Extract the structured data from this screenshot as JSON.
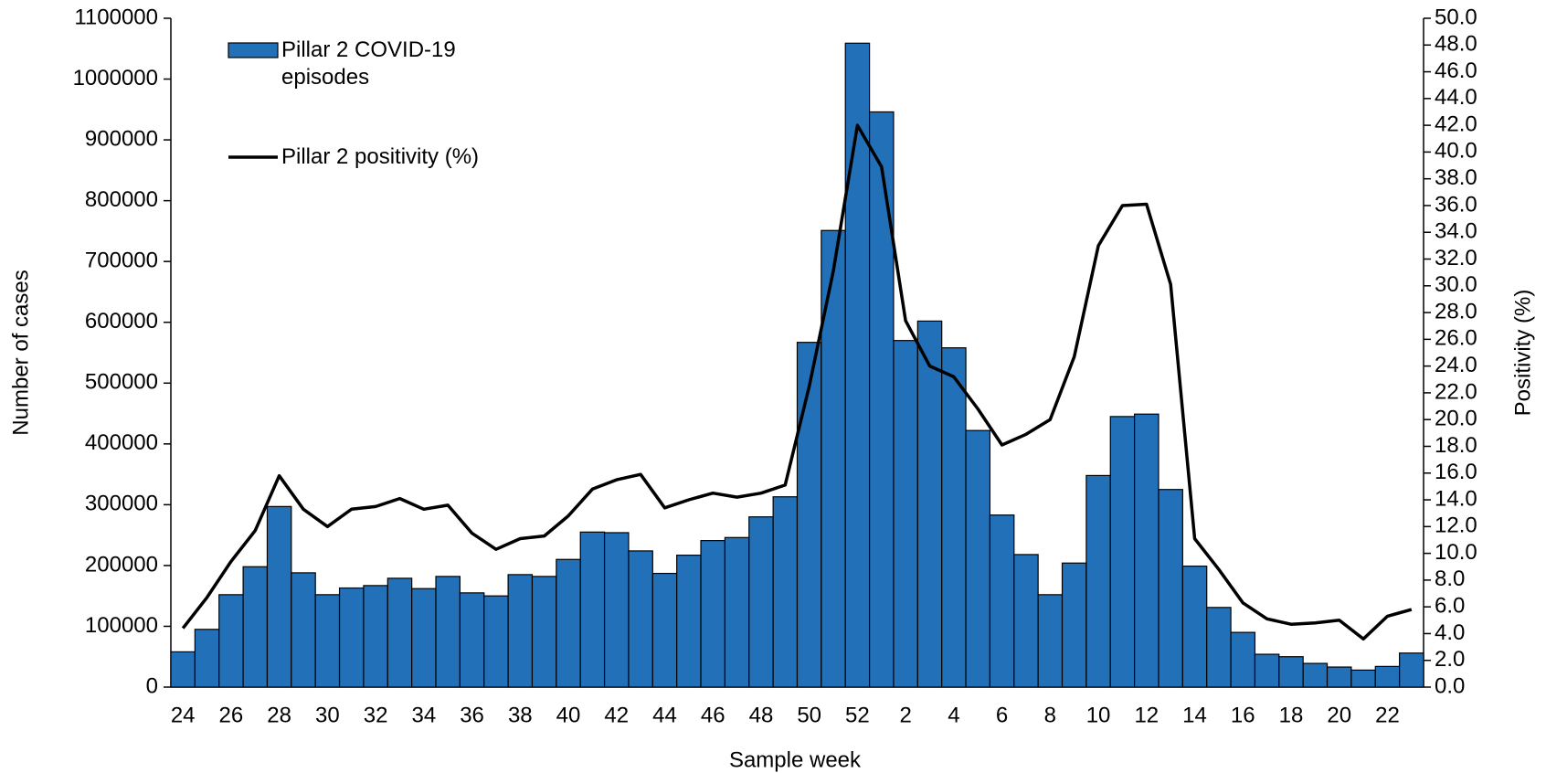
{
  "chart_data": {
    "type": "bar",
    "x_label": "Sample week",
    "y_label": "Number of cases",
    "y2_label": "Positivity (%)",
    "categories": [
      "24",
      null,
      "26",
      null,
      "28",
      null,
      "30",
      null,
      "32",
      null,
      "34",
      null,
      "36",
      null,
      "38",
      null,
      "40",
      null,
      "42",
      null,
      "44",
      null,
      "46",
      null,
      "48",
      null,
      "50",
      null,
      "52",
      null,
      "2",
      null,
      "4",
      null,
      "6",
      null,
      "8",
      null,
      "10",
      null,
      "12",
      null,
      "14",
      null,
      "16",
      null,
      "18",
      null,
      "20",
      null,
      "22",
      null
    ],
    "series": [
      {
        "name": "Pillar 2 COVID-19 episodes",
        "type": "bar",
        "color": "#2271b8",
        "values": [
          58000,
          95000,
          152000,
          198000,
          297000,
          188000,
          152000,
          163000,
          167000,
          179000,
          162000,
          182000,
          155000,
          150000,
          185000,
          182000,
          210000,
          255000,
          254000,
          224000,
          187000,
          217000,
          241000,
          246000,
          280000,
          313000,
          567000,
          751000,
          1059000,
          946000,
          570000,
          602000,
          558000,
          422000,
          283000,
          218000,
          152000,
          204000,
          348000,
          445000,
          449000,
          325000,
          199000,
          131000,
          90000,
          54000,
          50000,
          39000,
          33000,
          28000,
          34000,
          56000
        ]
      },
      {
        "name": "Pillar 2 positivity (%)",
        "type": "line",
        "color": "#000000",
        "axis": "y2",
        "values": [
          4.4,
          6.7,
          9.4,
          11.7,
          15.8,
          13.3,
          12.0,
          13.3,
          13.5,
          14.1,
          13.3,
          13.6,
          11.5,
          10.3,
          11.1,
          11.3,
          12.8,
          14.8,
          15.5,
          15.9,
          13.4,
          14.0,
          14.5,
          14.2,
          14.5,
          15.1,
          22.5,
          31.1,
          42.0,
          38.9,
          27.4,
          24.0,
          23.2,
          20.8,
          18.1,
          18.9,
          20.0,
          24.7,
          33.0,
          36.0,
          36.1,
          30.1,
          11.1,
          8.8,
          6.3,
          5.1,
          4.7,
          4.8,
          5.0,
          3.6,
          5.3,
          5.8
        ]
      }
    ],
    "ylim": [
      0,
      1100000
    ],
    "yticks": [
      0,
      100000,
      200000,
      300000,
      400000,
      500000,
      600000,
      700000,
      800000,
      900000,
      1000000,
      1100000
    ],
    "y2lim": [
      0,
      50
    ],
    "y2ticks": [
      {
        "value": 0,
        "label": "0.0"
      },
      {
        "value": 2,
        "label": "2.0"
      },
      {
        "value": 4,
        "label": "4.0"
      },
      {
        "value": 6,
        "label": "6.0"
      },
      {
        "value": 8,
        "label": "8.0"
      },
      {
        "value": 10,
        "label": "10.0"
      },
      {
        "value": 12,
        "label": "12.0"
      },
      {
        "value": 14,
        "label": "14.0"
      },
      {
        "value": 16,
        "label": "16.0"
      },
      {
        "value": 18,
        "label": "18.0"
      },
      {
        "value": 20,
        "label": "20.0"
      },
      {
        "value": 22,
        "label": "22.0"
      },
      {
        "value": 24,
        "label": "24.0"
      },
      {
        "value": 26,
        "label": "26.0"
      },
      {
        "value": 28,
        "label": "28.0"
      },
      {
        "value": 30,
        "label": "30.0"
      },
      {
        "value": 32,
        "label": "32.0"
      },
      {
        "value": 34,
        "label": "34.0"
      },
      {
        "value": 36,
        "label": "36.0"
      },
      {
        "value": 38,
        "label": "38.0"
      },
      {
        "value": 40,
        "label": "40.0"
      },
      {
        "value": 42,
        "label": "42.0"
      },
      {
        "value": 44,
        "label": "44.0"
      },
      {
        "value": 46,
        "label": "46.0"
      },
      {
        "value": 48,
        "label": "48.0"
      },
      {
        "value": 50,
        "label": "50.0"
      }
    ]
  }
}
